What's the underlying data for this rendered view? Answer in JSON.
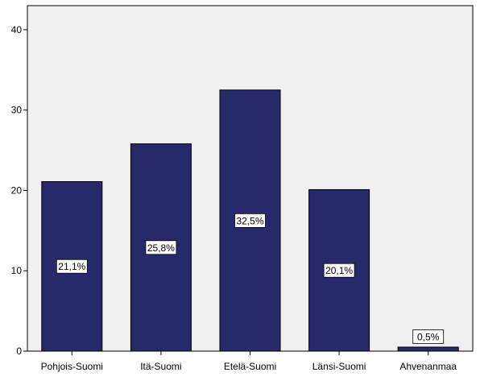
{
  "chart_data": {
    "type": "bar",
    "categories": [
      "Pohjois-Suomi",
      "Itä-Suomi",
      "Etelä-Suomi",
      "Länsi-Suomi",
      "Ahvenanmaa"
    ],
    "values": [
      21.1,
      25.8,
      32.5,
      20.1,
      0.5
    ],
    "data_labels": [
      "21,1%",
      "25,8%",
      "32,5%",
      "20,1%",
      "0,5%"
    ],
    "title": "",
    "xlabel": "",
    "ylabel": "",
    "ylim": [
      0,
      43
    ],
    "yticks": [
      0,
      10,
      20,
      30,
      40
    ],
    "grid": false,
    "legend": "none",
    "colors": {
      "bar_fill": "#262a6b",
      "bar_stroke": "#000000",
      "plot_background": "#f0f0f0",
      "axis": "#000000",
      "label_box_fill": "#ffffff"
    }
  }
}
